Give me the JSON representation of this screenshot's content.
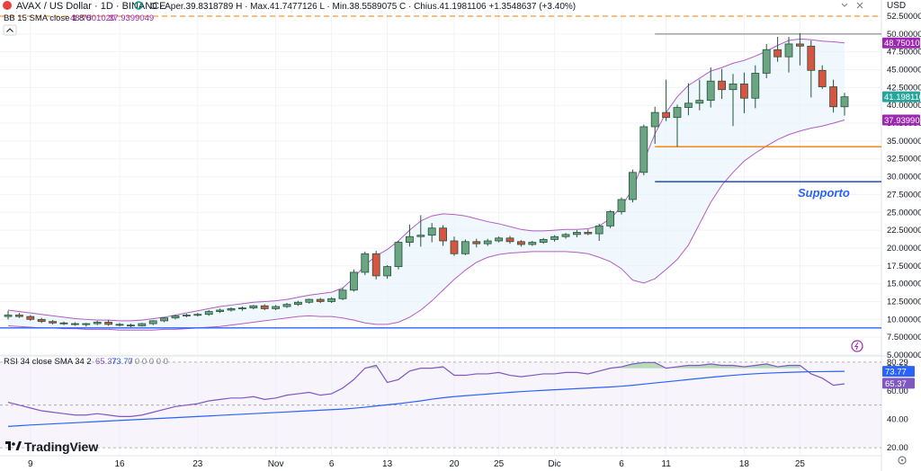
{
  "header": {
    "symbol": "AVAX / US Dollar · 1D · BINANCE",
    "ohlc": "O · Aper.39.8318789  H · Max.41.7477126  L · Min.38.5589075  C · Chius.41.1981106  +1.3548637 (+3.40%)",
    "bb_legend": "BB 15 SMA close 1.8 0",
    "bb_upper": "48.7501020",
    "bb_lower": "37.9399049",
    "currency": "USD"
  },
  "rsi_legend": {
    "label": "RSI 34 close SMA 34 2",
    "v1": "65.37",
    "v2": "73.77",
    "rest": "0 0 0 0 0 0"
  },
  "annotation": {
    "supporto": "Supporto"
  },
  "logo": "TradingView",
  "price_axis": {
    "ticks": [
      "52.5000000",
      "50.0000000",
      "47.5000000",
      "45.0000000",
      "42.5000000",
      "40.0000000",
      "37.5000000",
      "35.0000000",
      "32.5000000",
      "30.0000000",
      "27.5000000",
      "25.0000000",
      "22.5000000",
      "20.0000000",
      "17.5000000",
      "15.0000000",
      "12.5000000",
      "10.0000000",
      "7.5000000",
      "5.0000000"
    ],
    "tags": {
      "bb_upper": "48.7501020",
      "last": "41.1981106",
      "bb_lower": "37.9399049"
    }
  },
  "rsi_axis": {
    "ticks": [
      "80.29",
      "76.08",
      "60.00",
      "40.00",
      "20.00"
    ],
    "tags": {
      "v2": "73.77",
      "v1": "65.37"
    }
  },
  "chart_data": {
    "type": "candlestick",
    "x_ticks": [
      "9",
      "16",
      "23",
      "Nov",
      "6",
      "13",
      "20",
      "25",
      "Dic",
      "6",
      "11",
      "18",
      "25"
    ],
    "ylim": [
      5,
      53
    ],
    "candles": [
      {
        "o": 10.4,
        "h": 11.2,
        "l": 10.0,
        "c": 10.6
      },
      {
        "o": 10.6,
        "h": 10.9,
        "l": 10.2,
        "c": 10.4
      },
      {
        "o": 10.4,
        "h": 10.6,
        "l": 9.8,
        "c": 10.0
      },
      {
        "o": 10.0,
        "h": 10.2,
        "l": 9.5,
        "c": 9.7
      },
      {
        "o": 9.7,
        "h": 9.9,
        "l": 9.3,
        "c": 9.5
      },
      {
        "o": 9.5,
        "h": 9.7,
        "l": 9.2,
        "c": 9.4
      },
      {
        "o": 9.4,
        "h": 9.6,
        "l": 9.1,
        "c": 9.3
      },
      {
        "o": 9.3,
        "h": 9.5,
        "l": 9.0,
        "c": 9.4
      },
      {
        "o": 9.4,
        "h": 9.8,
        "l": 9.2,
        "c": 9.6
      },
      {
        "o": 9.6,
        "h": 9.9,
        "l": 9.1,
        "c": 9.3
      },
      {
        "o": 9.3,
        "h": 9.5,
        "l": 9.0,
        "c": 9.2
      },
      {
        "o": 9.2,
        "h": 9.4,
        "l": 8.9,
        "c": 9.1
      },
      {
        "o": 9.1,
        "h": 9.5,
        "l": 9.0,
        "c": 9.4
      },
      {
        "o": 9.4,
        "h": 9.9,
        "l": 9.2,
        "c": 9.8
      },
      {
        "o": 9.8,
        "h": 10.3,
        "l": 9.6,
        "c": 10.2
      },
      {
        "o": 10.2,
        "h": 10.6,
        "l": 10.0,
        "c": 10.5
      },
      {
        "o": 10.5,
        "h": 10.8,
        "l": 10.3,
        "c": 10.6
      },
      {
        "o": 10.6,
        "h": 10.9,
        "l": 10.4,
        "c": 10.7
      },
      {
        "o": 10.7,
        "h": 11.3,
        "l": 10.5,
        "c": 11.1
      },
      {
        "o": 11.1,
        "h": 11.5,
        "l": 10.9,
        "c": 11.3
      },
      {
        "o": 11.3,
        "h": 11.7,
        "l": 11.1,
        "c": 11.5
      },
      {
        "o": 11.5,
        "h": 11.8,
        "l": 11.2,
        "c": 11.6
      },
      {
        "o": 11.6,
        "h": 12.0,
        "l": 11.4,
        "c": 11.9
      },
      {
        "o": 11.9,
        "h": 12.1,
        "l": 11.3,
        "c": 11.5
      },
      {
        "o": 11.5,
        "h": 12.0,
        "l": 11.3,
        "c": 11.8
      },
      {
        "o": 11.8,
        "h": 12.3,
        "l": 11.6,
        "c": 12.1
      },
      {
        "o": 12.1,
        "h": 12.6,
        "l": 11.9,
        "c": 12.4
      },
      {
        "o": 12.4,
        "h": 12.9,
        "l": 12.2,
        "c": 12.8
      },
      {
        "o": 12.8,
        "h": 13.0,
        "l": 12.3,
        "c": 12.5
      },
      {
        "o": 12.5,
        "h": 13.1,
        "l": 12.3,
        "c": 12.9
      },
      {
        "o": 12.9,
        "h": 14.4,
        "l": 12.7,
        "c": 14.1
      },
      {
        "o": 14.1,
        "h": 17.0,
        "l": 13.9,
        "c": 16.6
      },
      {
        "o": 16.6,
        "h": 19.5,
        "l": 16.2,
        "c": 19.2
      },
      {
        "o": 19.2,
        "h": 19.6,
        "l": 15.6,
        "c": 16.1
      },
      {
        "o": 16.1,
        "h": 17.6,
        "l": 15.7,
        "c": 17.4
      },
      {
        "o": 17.4,
        "h": 21.0,
        "l": 17.0,
        "c": 20.8
      },
      {
        "o": 20.8,
        "h": 23.3,
        "l": 20.2,
        "c": 21.6
      },
      {
        "o": 21.6,
        "h": 24.6,
        "l": 20.2,
        "c": 21.8
      },
      {
        "o": 21.8,
        "h": 23.5,
        "l": 20.8,
        "c": 22.8
      },
      {
        "o": 22.8,
        "h": 23.2,
        "l": 20.3,
        "c": 21.0
      },
      {
        "o": 21.0,
        "h": 21.6,
        "l": 18.9,
        "c": 19.2
      },
      {
        "o": 19.2,
        "h": 21.2,
        "l": 19.0,
        "c": 20.9
      },
      {
        "o": 20.9,
        "h": 21.3,
        "l": 20.1,
        "c": 20.6
      },
      {
        "o": 20.6,
        "h": 21.3,
        "l": 20.3,
        "c": 21.0
      },
      {
        "o": 21.0,
        "h": 21.6,
        "l": 20.8,
        "c": 21.4
      },
      {
        "o": 21.4,
        "h": 21.7,
        "l": 20.6,
        "c": 20.9
      },
      {
        "o": 20.9,
        "h": 21.1,
        "l": 20.2,
        "c": 20.5
      },
      {
        "o": 20.5,
        "h": 21.0,
        "l": 20.3,
        "c": 20.8
      },
      {
        "o": 20.8,
        "h": 21.4,
        "l": 20.6,
        "c": 21.2
      },
      {
        "o": 21.2,
        "h": 21.8,
        "l": 20.9,
        "c": 21.6
      },
      {
        "o": 21.6,
        "h": 22.1,
        "l": 21.3,
        "c": 21.9
      },
      {
        "o": 21.9,
        "h": 22.5,
        "l": 21.5,
        "c": 22.2
      },
      {
        "o": 22.2,
        "h": 22.6,
        "l": 21.8,
        "c": 22.0
      },
      {
        "o": 22.0,
        "h": 23.4,
        "l": 21.0,
        "c": 23.1
      },
      {
        "o": 23.1,
        "h": 25.3,
        "l": 22.8,
        "c": 25.1
      },
      {
        "o": 25.1,
        "h": 27.1,
        "l": 24.7,
        "c": 26.8
      },
      {
        "o": 26.8,
        "h": 31.0,
        "l": 26.4,
        "c": 30.6
      },
      {
        "o": 30.6,
        "h": 37.3,
        "l": 30.2,
        "c": 37.0
      },
      {
        "o": 37.0,
        "h": 39.8,
        "l": 34.6,
        "c": 39.0
      },
      {
        "o": 39.0,
        "h": 43.6,
        "l": 37.8,
        "c": 38.3
      },
      {
        "o": 38.3,
        "h": 40.1,
        "l": 34.2,
        "c": 39.7
      },
      {
        "o": 39.7,
        "h": 43.1,
        "l": 38.6,
        "c": 40.3
      },
      {
        "o": 40.3,
        "h": 43.6,
        "l": 39.3,
        "c": 40.7
      },
      {
        "o": 40.7,
        "h": 45.3,
        "l": 39.7,
        "c": 43.4
      },
      {
        "o": 43.4,
        "h": 45.1,
        "l": 40.9,
        "c": 42.2
      },
      {
        "o": 42.2,
        "h": 44.4,
        "l": 37.1,
        "c": 43.0
      },
      {
        "o": 43.0,
        "h": 44.6,
        "l": 38.9,
        "c": 41.0
      },
      {
        "o": 41.0,
        "h": 45.6,
        "l": 39.6,
        "c": 44.5
      },
      {
        "o": 44.5,
        "h": 48.6,
        "l": 43.8,
        "c": 47.8
      },
      {
        "o": 47.8,
        "h": 49.6,
        "l": 46.1,
        "c": 46.8
      },
      {
        "o": 46.8,
        "h": 49.6,
        "l": 44.6,
        "c": 48.6
      },
      {
        "o": 48.6,
        "h": 50.1,
        "l": 45.6,
        "c": 48.3
      },
      {
        "o": 48.3,
        "h": 49.1,
        "l": 41.1,
        "c": 44.9
      },
      {
        "o": 44.9,
        "h": 45.6,
        "l": 42.3,
        "c": 42.6
      },
      {
        "o": 42.6,
        "h": 43.6,
        "l": 39.0,
        "c": 39.8
      },
      {
        "o": 39.8,
        "h": 41.75,
        "l": 38.56,
        "c": 41.2
      }
    ],
    "bollinger": {
      "upper": [
        11.3,
        11.1,
        10.9,
        10.7,
        10.5,
        10.3,
        10.1,
        10.0,
        9.9,
        9.9,
        9.8,
        9.8,
        9.9,
        10.1,
        10.3,
        10.6,
        10.9,
        11.2,
        11.5,
        11.8,
        12.0,
        12.2,
        12.4,
        12.5,
        12.6,
        12.8,
        13.1,
        13.4,
        13.6,
        13.8,
        14.4,
        15.8,
        17.6,
        18.9,
        19.8,
        21.0,
        22.5,
        23.8,
        24.5,
        24.8,
        24.7,
        24.5,
        24.1,
        23.7,
        23.4,
        23.0,
        22.6,
        22.4,
        22.4,
        22.5,
        22.6,
        22.6,
        22.7,
        23.1,
        24.1,
        25.8,
        28.3,
        32.2,
        36.0,
        39.0,
        41.2,
        42.8,
        43.8,
        44.8,
        45.3,
        45.9,
        46.3,
        46.9,
        47.6,
        48.4,
        49.1,
        49.3,
        49.2,
        49.0,
        48.9,
        48.75
      ],
      "lower": [
        9.1,
        9.0,
        8.9,
        8.8,
        8.8,
        8.7,
        8.7,
        8.6,
        8.6,
        8.6,
        8.5,
        8.5,
        8.5,
        8.5,
        8.6,
        8.6,
        8.7,
        8.8,
        8.9,
        9.0,
        9.2,
        9.4,
        9.6,
        9.8,
        10.0,
        10.2,
        10.4,
        10.5,
        10.4,
        10.4,
        10.2,
        9.9,
        9.5,
        9.3,
        9.3,
        9.6,
        10.3,
        11.3,
        12.6,
        14.1,
        15.6,
        16.9,
        18.0,
        18.7,
        19.1,
        19.3,
        19.4,
        19.5,
        19.5,
        19.5,
        19.5,
        19.4,
        19.2,
        18.7,
        18.1,
        17.1,
        15.5,
        15.1,
        15.7,
        17.0,
        18.4,
        20.4,
        23.4,
        26.4,
        28.8,
        30.6,
        32.2,
        33.3,
        34.3,
        35.2,
        35.9,
        36.4,
        36.8,
        37.1,
        37.5,
        37.94
      ]
    },
    "horizontal_lines": [
      {
        "value": 52.5,
        "color": "#f57c00",
        "style": "dashed"
      },
      {
        "value": 50.0,
        "color": "#999999",
        "style": "solid",
        "start_index": 58
      },
      {
        "value": 34.2,
        "color": "#f57c00",
        "style": "solid",
        "start_index": 58
      },
      {
        "value": 29.3,
        "color": "#1e4fb5",
        "style": "solid",
        "start_index": 58
      },
      {
        "value": 8.8,
        "color": "#2962ff",
        "style": "solid"
      }
    ],
    "rsi": {
      "ylim": [
        15,
        84
      ],
      "levels": [
        20,
        50,
        80.29
      ],
      "rsi": [
        52,
        50,
        48,
        46,
        45,
        44,
        43,
        43,
        44,
        43,
        42,
        42,
        43,
        45,
        47,
        49,
        50,
        51,
        53,
        54,
        55,
        55,
        56,
        54,
        55,
        57,
        58,
        59,
        57,
        58,
        62,
        68,
        76,
        78,
        66,
        68,
        74,
        76,
        76,
        77,
        71,
        71,
        72,
        72,
        73,
        71,
        70,
        71,
        72,
        72,
        73,
        73,
        72,
        74,
        76,
        77,
        79,
        80,
        80,
        76,
        77,
        78,
        78,
        79,
        78,
        78,
        77,
        78,
        79,
        77,
        78,
        78,
        72,
        69,
        64,
        65
      ],
      "sma": [
        35,
        35.5,
        36,
        36.4,
        36.8,
        37.2,
        37.6,
        38,
        38.4,
        38.8,
        39.2,
        39.6,
        40,
        40.4,
        40.8,
        41.2,
        41.6,
        42,
        42.4,
        42.8,
        43.2,
        43.6,
        44,
        44.4,
        44.8,
        45.2,
        45.6,
        46,
        46.4,
        46.8,
        47.2,
        47.8,
        48.5,
        49.4,
        50.2,
        51,
        52,
        53,
        54.2,
        55.2,
        56,
        56.6,
        57.2,
        57.8,
        58.4,
        59,
        59.5,
        60,
        60.4,
        60.8,
        61.2,
        61.6,
        62,
        62.4,
        62.8,
        63.3,
        64,
        64.8,
        65.6,
        66.4,
        67.2,
        68,
        68.8,
        69.6,
        70.3,
        71,
        71.6,
        72.1,
        72.5,
        72.8,
        73.1,
        73.3,
        73.5,
        73.6,
        73.7,
        73.77
      ]
    }
  }
}
